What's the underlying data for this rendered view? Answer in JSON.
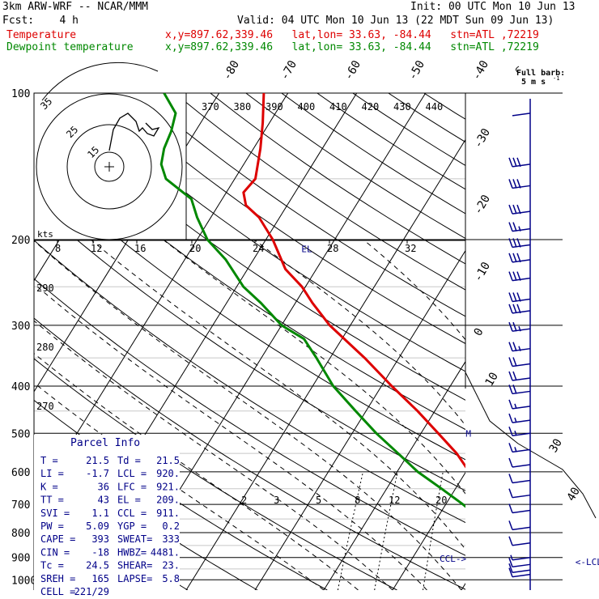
{
  "header": {
    "model": "3km ARW-WRF -- NCAR/MMM",
    "init": "Init: 00 UTC Mon 10 Jun 13",
    "fcst": "Fcst:    4 h",
    "valid": "Valid: 04 UTC Mon 10 Jun 13 (22 MDT Sun 09 Jun 13)",
    "lines": [
      {
        "name": "Temperature",
        "loc": "x,y=897.62,339.46   lat,lon= 33.63, -84.44   stn=ATL ,72219",
        "color": "#dd0000"
      },
      {
        "name": "Dewpoint temperature",
        "loc": "x,y=897.62,339.46   lat,lon= 33.63, -84.44   stn=ATL ,72219",
        "color": "#008800"
      }
    ]
  },
  "barb_legend": {
    "title": "Full barb:",
    "value": "5 m s",
    "sup": "-1"
  },
  "chart_data": {
    "type": "line",
    "pressure_ticks": [
      100,
      200,
      300,
      400,
      500,
      600,
      700,
      800,
      900,
      1000
    ],
    "isotherm_labels": [
      "-80",
      "-70",
      "-60",
      "-50",
      "-40",
      "-30",
      "-20",
      "-10",
      "0",
      "10",
      "30",
      "40"
    ],
    "theta_labels": [
      "370",
      "380",
      "390",
      "400",
      "410",
      "420",
      "430",
      "440"
    ],
    "theta_left_labels": [
      "290",
      "280",
      "270"
    ],
    "mixing_ratio_labels": [
      "2",
      "3",
      "5",
      "8",
      "12",
      "20"
    ],
    "hodograph": {
      "speed_labels": [
        "8",
        "12",
        "16",
        "20",
        "24",
        "28",
        "32"
      ],
      "unit": "kts",
      "ring_labels": [
        "25",
        "15"
      ],
      "partial_ring_label": "35"
    },
    "series": [
      {
        "name": "Temperature",
        "color": "#dd0000",
        "p": [
          975,
          960,
          940,
          925,
          910,
          890,
          850,
          800,
          780,
          750,
          720,
          700,
          650,
          600,
          550,
          500,
          450,
          400,
          350,
          300,
          270,
          250,
          230,
          200,
          180,
          170,
          160,
          150,
          130,
          115,
          100
        ],
        "t": [
          21.0,
          20.0,
          18.0,
          17.0,
          16.5,
          16.0,
          14.5,
          12.5,
          11.5,
          10.0,
          8.5,
          7.0,
          4.0,
          0.5,
          -3.0,
          -7.5,
          -12.5,
          -18.5,
          -25.0,
          -33.0,
          -37.5,
          -40.5,
          -44.5,
          -49.0,
          -53.0,
          -56.0,
          -57.5,
          -57.0,
          -59.0,
          -61.0,
          -63.5
        ]
      },
      {
        "name": "Dewpoint temperature",
        "color": "#008800",
        "p": [
          975,
          960,
          940,
          925,
          910,
          890,
          850,
          800,
          780,
          750,
          700,
          650,
          600,
          550,
          500,
          450,
          400,
          350,
          320,
          300,
          270,
          250,
          220,
          200,
          180,
          165,
          150,
          140,
          130,
          120,
          110,
          100
        ],
        "t": [
          21.5,
          20.0,
          17.5,
          16.0,
          15.5,
          15.5,
          13.5,
          11.0,
          9.0,
          6.5,
          2.5,
          -2.0,
          -7.0,
          -11.5,
          -16.5,
          -21.5,
          -27.0,
          -32.0,
          -35.5,
          -40.0,
          -45.0,
          -49.0,
          -54.0,
          -58.5,
          -62.0,
          -64.5,
          -70.0,
          -72.0,
          -73.0,
          -73.5,
          -74.5,
          -78.0
        ]
      }
    ],
    "annotations": [
      {
        "text": "EL",
        "p": 209,
        "t": -44
      },
      {
        "text": "M",
        "p": 500,
        "t": -3.5
      },
      {
        "text": "CCL->",
        "p": 905,
        "t": 4
      },
      {
        "text": "<-LCL <-LFC",
        "p": 918,
        "t": 24
      }
    ]
  },
  "parcel_info": {
    "title": "Parcel Info",
    "rows": [
      [
        "T  =",
        "21.5",
        "Td =",
        "21.5"
      ],
      [
        "LI =",
        "-1.7",
        "LCL =",
        "920."
      ],
      [
        "K  =",
        "36",
        "LFC =",
        "921."
      ],
      [
        "TT =",
        "43",
        "EL  =",
        "209."
      ],
      [
        "SVI =",
        "1.1",
        "CCL =",
        "911."
      ],
      [
        "PW =",
        "5.09",
        "YGP =",
        "0.2"
      ],
      [
        "CAPE =",
        "393",
        "SWEAT=",
        "333"
      ],
      [
        "CIN =",
        "-18",
        "HWBZ=",
        "4481."
      ],
      [
        "Tc =",
        "24.5",
        "SHEAR=",
        "23."
      ],
      [
        "SREH =",
        "165",
        "LAPSE=",
        "5.8"
      ],
      [
        "CELL =",
        "221/29",
        "",
        ""
      ]
    ]
  },
  "wind_profile": {
    "levels": [
      {
        "p": 110,
        "spd": 0
      },
      {
        "p": 140,
        "spd": 30
      },
      {
        "p": 155,
        "spd": 30
      },
      {
        "p": 175,
        "spd": 30
      },
      {
        "p": 190,
        "spd": 25
      },
      {
        "p": 205,
        "spd": 30
      },
      {
        "p": 220,
        "spd": 30
      },
      {
        "p": 240,
        "spd": 30
      },
      {
        "p": 265,
        "spd": 30
      },
      {
        "p": 280,
        "spd": 30
      },
      {
        "p": 305,
        "spd": 25
      },
      {
        "p": 335,
        "spd": 25
      },
      {
        "p": 360,
        "spd": 20
      },
      {
        "p": 385,
        "spd": 20
      },
      {
        "p": 410,
        "spd": 20
      },
      {
        "p": 440,
        "spd": 15
      },
      {
        "p": 470,
        "spd": 15
      },
      {
        "p": 500,
        "spd": 15
      },
      {
        "p": 540,
        "spd": 15
      },
      {
        "p": 580,
        "spd": 10
      },
      {
        "p": 625,
        "spd": 10
      },
      {
        "p": 670,
        "spd": 10
      },
      {
        "p": 720,
        "spd": 10
      },
      {
        "p": 780,
        "spd": 10
      },
      {
        "p": 840,
        "spd": 10
      },
      {
        "p": 900,
        "spd": 5
      },
      {
        "p": 930,
        "spd": 10
      },
      {
        "p": 955,
        "spd": 10
      },
      {
        "p": 975,
        "spd": 10
      }
    ]
  }
}
